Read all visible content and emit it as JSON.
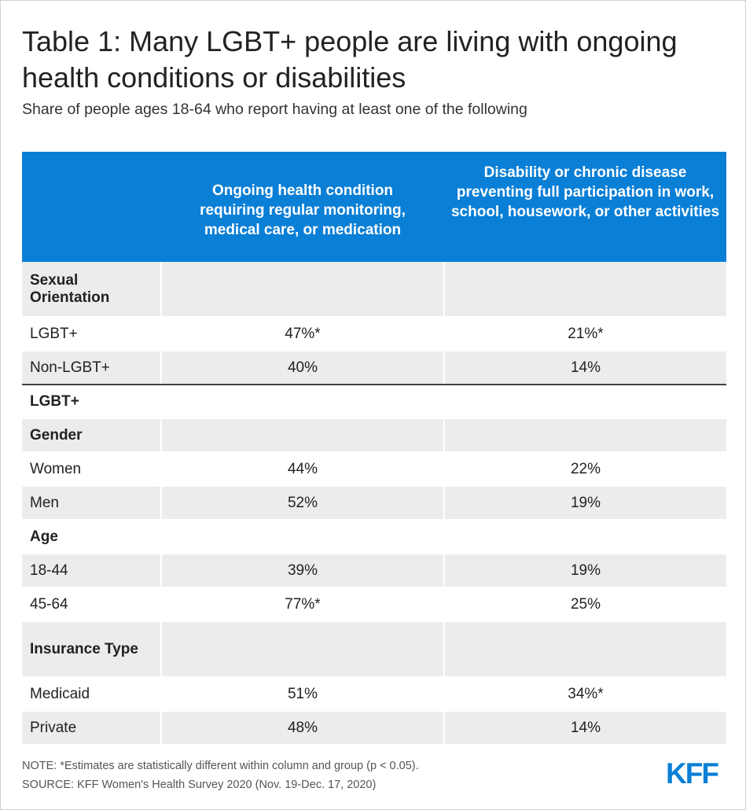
{
  "title": "Table 1: Many LGBT+ people are living with ongoing health conditions or disabilities",
  "subtitle": "Share of people ages 18-64 who report having at least one of the following",
  "table": {
    "col_headers": [
      "",
      "Ongoing health condition requiring regular monitoring, medical care, or medication",
      "Disability or chronic disease preventing full participation in work, school, housework, or other activities"
    ],
    "rows": [
      [
        "Sexual Orientation",
        "",
        ""
      ],
      [
        "LGBT+",
        "47%*",
        "21%*"
      ],
      [
        "Non-LGBT+",
        "40%",
        "14%"
      ],
      [
        "LGBT+",
        "",
        ""
      ],
      [
        "Gender",
        "",
        ""
      ],
      [
        "Women",
        "44%",
        "22%"
      ],
      [
        "Men",
        "52%",
        "19%"
      ],
      [
        "Age",
        "",
        ""
      ],
      [
        "18-44",
        "39%",
        "19%"
      ],
      [
        "45-64",
        "77%*",
        "25%"
      ],
      [
        "Insurance Type",
        "",
        ""
      ],
      [
        "Medicaid",
        "51%",
        "34%*"
      ],
      [
        "Private",
        "48%",
        "14%"
      ]
    ]
  },
  "note": "NOTE: *Estimates are statistically different within column and group (p < 0.05).",
  "source": "SOURCE: KFF Women's Health Survey 2020 (Nov. 19-Dec. 17, 2020)",
  "logo_text": "KFF",
  "colors": {
    "header_blue": "#0a7fd6",
    "row_shade": "#ececec"
  }
}
